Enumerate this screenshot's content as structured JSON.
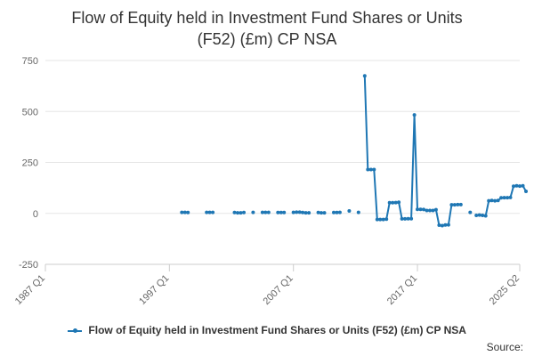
{
  "chart_data": {
    "type": "line",
    "title_line1": "Flow of Equity held in Investment Fund Shares or Units",
    "title_line2": "(F52) (£m) CP NSA",
    "xlabel": "",
    "ylabel": "",
    "ylim": [
      -250,
      750
    ],
    "yticks": [
      -250,
      0,
      250,
      500,
      750
    ],
    "xlim": [
      "1987 Q1",
      "2025 Q2"
    ],
    "xticks": [
      "1987 Q1",
      "1997 Q1",
      "2007 Q1",
      "2017 Q1",
      "2025 Q2"
    ],
    "grid": true,
    "legend_position": "bottom",
    "series": [
      {
        "name": "Flow of Equity held in Investment Fund Shares or Units (F52) (£m) CP NSA",
        "color": "#1f77b4",
        "points": [
          [
            "1998 Q1",
            5
          ],
          [
            "1998 Q2",
            5
          ],
          [
            "1998 Q3",
            4
          ],
          [
            "2000 Q1",
            5
          ],
          [
            "2000 Q2",
            5
          ],
          [
            "2000 Q3",
            5
          ],
          [
            "2002 Q2",
            4
          ],
          [
            "2002 Q3",
            3
          ],
          [
            "2002 Q4",
            3
          ],
          [
            "2003 Q1",
            4
          ],
          [
            "2003 Q4",
            5
          ],
          [
            "2004 Q3",
            5
          ],
          [
            "2004 Q4",
            5
          ],
          [
            "2005 Q1",
            5
          ],
          [
            "2005 Q4",
            4
          ],
          [
            "2006 Q1",
            4
          ],
          [
            "2006 Q2",
            4
          ],
          [
            "2007 Q1",
            5
          ],
          [
            "2007 Q2",
            6
          ],
          [
            "2007 Q3",
            6
          ],
          [
            "2007 Q4",
            4
          ],
          [
            "2008 Q1",
            3
          ],
          [
            "2008 Q2",
            3
          ],
          [
            "2009 Q1",
            4
          ],
          [
            "2009 Q2",
            3
          ],
          [
            "2009 Q3",
            3
          ],
          [
            "2010 Q2",
            4
          ],
          [
            "2010 Q3",
            4
          ],
          [
            "2010 Q4",
            5
          ],
          [
            "2011 Q3",
            12
          ],
          [
            "2012 Q2",
            5
          ],
          [
            "2012 Q4",
            675
          ],
          [
            "2013 Q1",
            215
          ],
          [
            "2013 Q2",
            215
          ],
          [
            "2013 Q3",
            215
          ],
          [
            "2013 Q4",
            -30
          ],
          [
            "2014 Q1",
            -30
          ],
          [
            "2014 Q2",
            -30
          ],
          [
            "2014 Q3",
            -28
          ],
          [
            "2014 Q4",
            52
          ],
          [
            "2015 Q1",
            52
          ],
          [
            "2015 Q2",
            53
          ],
          [
            "2015 Q3",
            55
          ],
          [
            "2015 Q4",
            -27
          ],
          [
            "2016 Q1",
            -27
          ],
          [
            "2016 Q2",
            -26
          ],
          [
            "2016 Q3",
            -26
          ],
          [
            "2016 Q4",
            483
          ],
          [
            "2017 Q1",
            20
          ],
          [
            "2017 Q2",
            20
          ],
          [
            "2017 Q3",
            19
          ],
          [
            "2017 Q4",
            14
          ],
          [
            "2018 Q1",
            14
          ],
          [
            "2018 Q2",
            14
          ],
          [
            "2018 Q3",
            18
          ],
          [
            "2018 Q4",
            -58
          ],
          [
            "2019 Q1",
            -60
          ],
          [
            "2019 Q2",
            -57
          ],
          [
            "2019 Q3",
            -56
          ],
          [
            "2019 Q4",
            42
          ],
          [
            "2020 Q1",
            42
          ],
          [
            "2020 Q2",
            43
          ],
          [
            "2020 Q3",
            43
          ],
          [
            "2021 Q2",
            5
          ],
          [
            "2021 Q4",
            -10
          ],
          [
            "2022 Q1",
            -8
          ],
          [
            "2022 Q2",
            -10
          ],
          [
            "2022 Q3",
            -12
          ],
          [
            "2022 Q4",
            62
          ],
          [
            "2023 Q1",
            63
          ],
          [
            "2023 Q2",
            62
          ],
          [
            "2023 Q3",
            63
          ],
          [
            "2023 Q4",
            76
          ],
          [
            "2024 Q1",
            77
          ],
          [
            "2024 Q2",
            77
          ],
          [
            "2024 Q3",
            78
          ],
          [
            "2024 Q4",
            133
          ],
          [
            "2025 Q1",
            135
          ],
          [
            "2025 Q2",
            134
          ],
          [
            "2025 Q3",
            135
          ],
          [
            "2025 Q4",
            108
          ]
        ]
      }
    ]
  },
  "source_label": "Source:"
}
